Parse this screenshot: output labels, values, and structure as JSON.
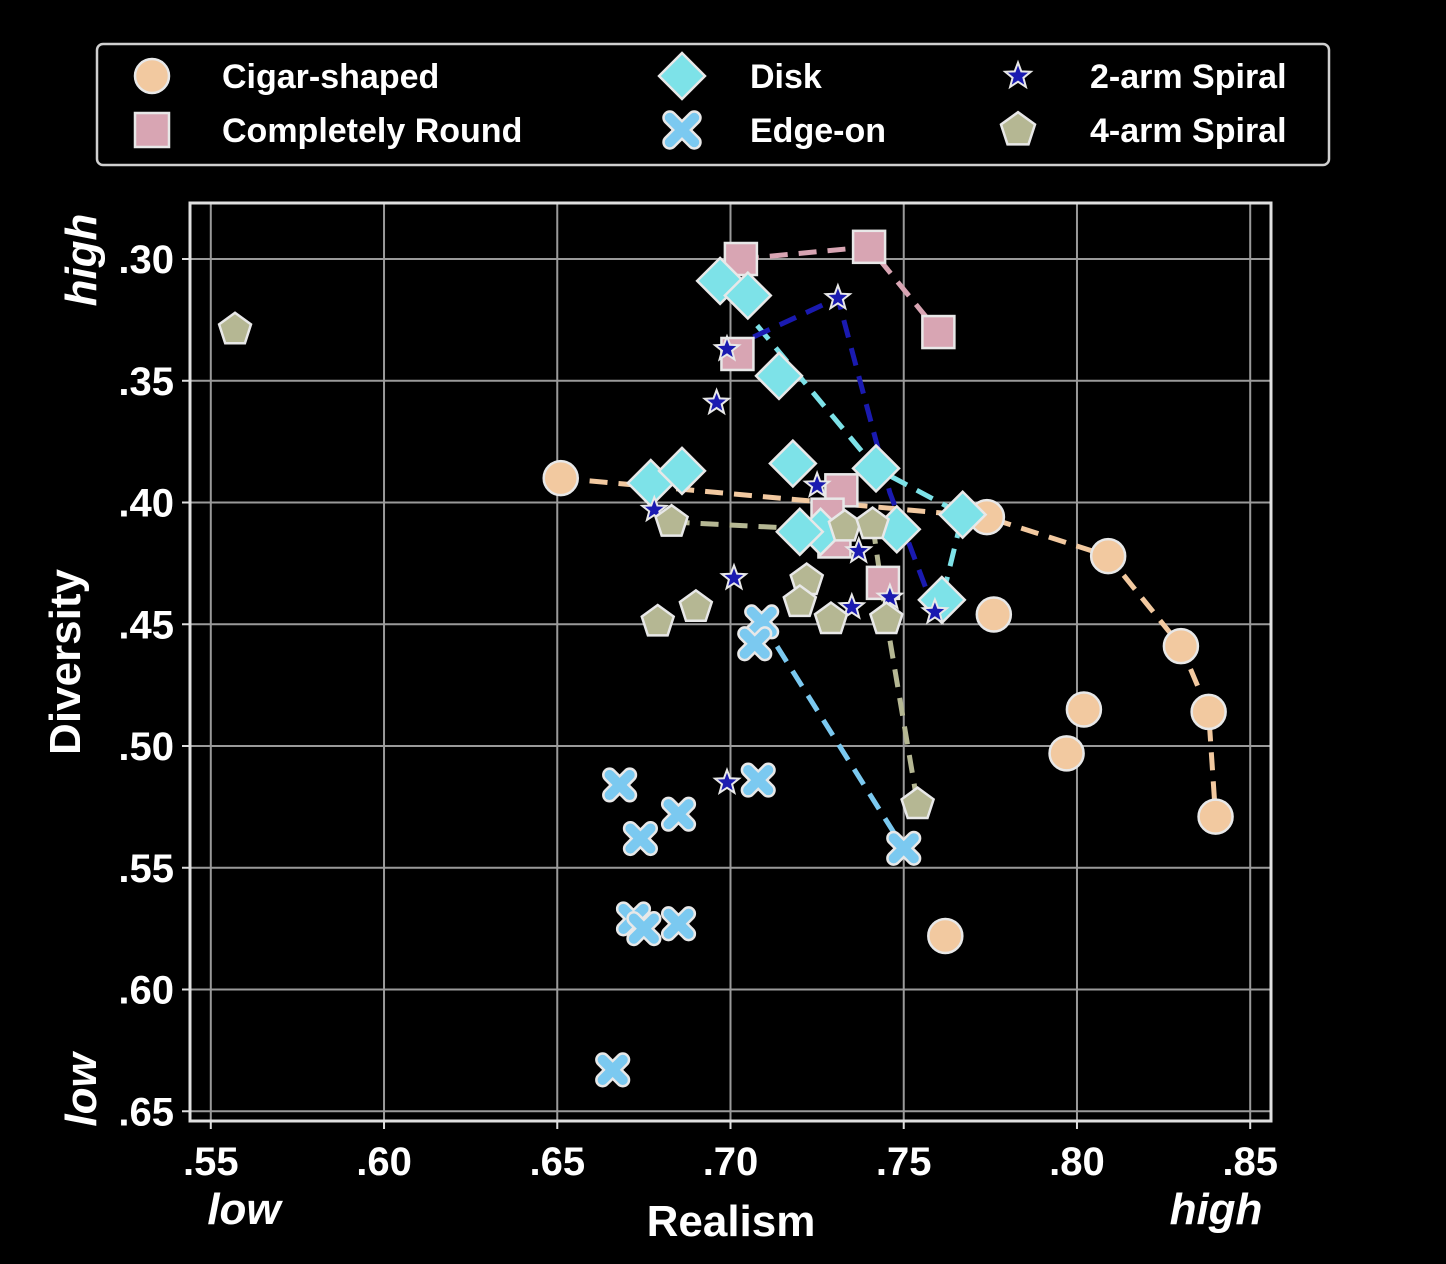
{
  "chart_data": {
    "type": "scatter",
    "xlabel": "Realism",
    "ylabel": "Diversity",
    "xlim": [
      0.544,
      0.856
    ],
    "ylim": [
      0.654,
      0.277
    ],
    "xticks": [
      0.55,
      0.6,
      0.65,
      0.7,
      0.75,
      0.8,
      0.85
    ],
    "xtick_labels": [
      ".55",
      ".60",
      ".65",
      ".70",
      ".75",
      ".80",
      ".85"
    ],
    "yticks": [
      0.3,
      0.35,
      0.4,
      0.45,
      0.5,
      0.55,
      0.6,
      0.65
    ],
    "ytick_labels": [
      ".30",
      ".35",
      ".40",
      ".45",
      ".50",
      ".55",
      ".60",
      ".65"
    ],
    "x_low_label": "low",
    "x_high_label": "high",
    "y_low_label": "low",
    "y_high_label": "high",
    "grid": true,
    "legend_position": "top",
    "series": [
      {
        "name": "Cigar-shaped",
        "marker": "circle",
        "color": "#F2C9A0",
        "points": [
          [
            0.651,
            0.39
          ],
          [
            0.774,
            0.406
          ],
          [
            0.809,
            0.422
          ],
          [
            0.83,
            0.459
          ],
          [
            0.838,
            0.486
          ],
          [
            0.84,
            0.529
          ],
          [
            0.776,
            0.446
          ],
          [
            0.802,
            0.485
          ],
          [
            0.797,
            0.503
          ],
          [
            0.762,
            0.578
          ]
        ],
        "line": [
          [
            0.651,
            0.39
          ],
          [
            0.774,
            0.406
          ],
          [
            0.809,
            0.422
          ],
          [
            0.83,
            0.459
          ],
          [
            0.838,
            0.486
          ],
          [
            0.84,
            0.529
          ]
        ]
      },
      {
        "name": "Completely Round",
        "marker": "square",
        "color": "#D8A5B3",
        "points": [
          [
            0.703,
            0.3
          ],
          [
            0.74,
            0.295
          ],
          [
            0.76,
            0.33
          ],
          [
            0.702,
            0.339
          ],
          [
            0.732,
            0.395
          ],
          [
            0.728,
            0.405
          ],
          [
            0.73,
            0.416
          ],
          [
            0.744,
            0.433
          ]
        ],
        "line": [
          [
            0.703,
            0.3
          ],
          [
            0.74,
            0.295
          ],
          [
            0.76,
            0.33
          ]
        ]
      },
      {
        "name": "Disk",
        "marker": "diamond",
        "color": "#7DE2E8",
        "points": [
          [
            0.697,
            0.309
          ],
          [
            0.705,
            0.315
          ],
          [
            0.714,
            0.348
          ],
          [
            0.718,
            0.384
          ],
          [
            0.742,
            0.386
          ],
          [
            0.767,
            0.405
          ],
          [
            0.748,
            0.411
          ],
          [
            0.761,
            0.44
          ],
          [
            0.726,
            0.412
          ],
          [
            0.72,
            0.412
          ],
          [
            0.677,
            0.392
          ],
          [
            0.686,
            0.387
          ]
        ],
        "line": [
          [
            0.697,
            0.309
          ],
          [
            0.742,
            0.386
          ],
          [
            0.767,
            0.405
          ],
          [
            0.761,
            0.44
          ]
        ]
      },
      {
        "name": "Edge-on",
        "marker": "x",
        "color": "#7BC9F0",
        "points": [
          [
            0.709,
            0.449
          ],
          [
            0.707,
            0.458
          ],
          [
            0.75,
            0.542
          ],
          [
            0.668,
            0.516
          ],
          [
            0.708,
            0.514
          ],
          [
            0.685,
            0.528
          ],
          [
            0.674,
            0.538
          ],
          [
            0.672,
            0.571
          ],
          [
            0.675,
            0.575
          ],
          [
            0.685,
            0.573
          ],
          [
            0.666,
            0.633
          ]
        ],
        "line": [
          [
            0.709,
            0.449
          ],
          [
            0.75,
            0.542
          ]
        ]
      },
      {
        "name": "2-arm Spiral",
        "marker": "star",
        "color": "#1A1AB0",
        "points": [
          [
            0.699,
            0.337
          ],
          [
            0.731,
            0.316
          ],
          [
            0.696,
            0.359
          ],
          [
            0.725,
            0.393
          ],
          [
            0.678,
            0.403
          ],
          [
            0.737,
            0.42
          ],
          [
            0.701,
            0.431
          ],
          [
            0.735,
            0.443
          ],
          [
            0.746,
            0.439
          ],
          [
            0.759,
            0.445
          ],
          [
            0.699,
            0.515
          ]
        ],
        "line": [
          [
            0.699,
            0.337
          ],
          [
            0.731,
            0.316
          ],
          [
            0.746,
            0.396
          ],
          [
            0.759,
            0.445
          ]
        ]
      },
      {
        "name": "4-arm Spiral",
        "marker": "pentagon",
        "color": "#B5B793",
        "points": [
          [
            0.557,
            0.329
          ],
          [
            0.683,
            0.408
          ],
          [
            0.733,
            0.41
          ],
          [
            0.741,
            0.409
          ],
          [
            0.722,
            0.432
          ],
          [
            0.72,
            0.441
          ],
          [
            0.69,
            0.443
          ],
          [
            0.679,
            0.449
          ],
          [
            0.729,
            0.448
          ],
          [
            0.745,
            0.448
          ],
          [
            0.754,
            0.524
          ]
        ],
        "line": [
          [
            0.683,
            0.408
          ],
          [
            0.724,
            0.411
          ],
          [
            0.741,
            0.409
          ],
          [
            0.745,
            0.448
          ],
          [
            0.754,
            0.524
          ]
        ]
      }
    ]
  }
}
